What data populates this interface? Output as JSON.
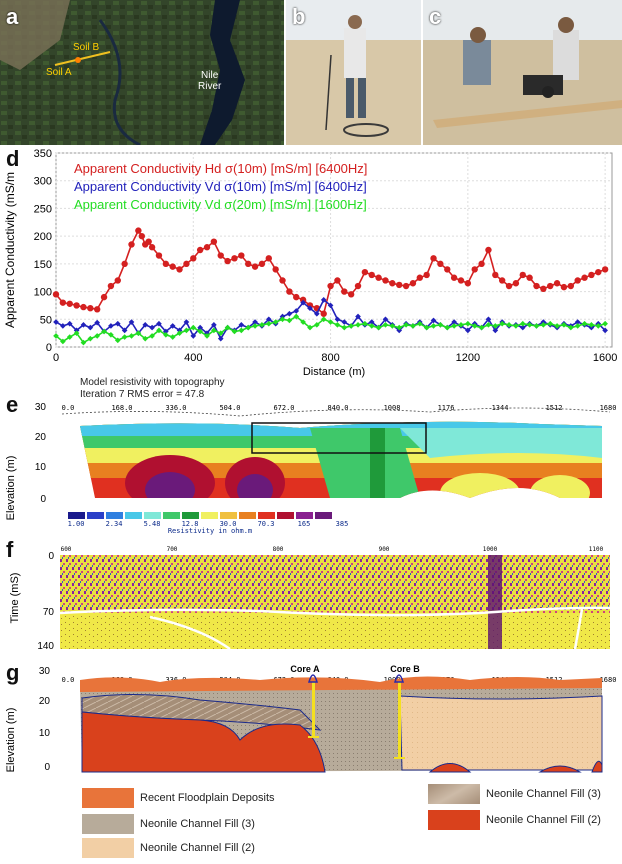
{
  "panel_labels": {
    "a": "a",
    "b": "b",
    "c": "c",
    "d": "d",
    "e": "e",
    "f": "f",
    "g": "g"
  },
  "panel_a": {
    "soil_b": "Soil B",
    "soil_a": "Soil A",
    "river_line1": "Nile",
    "river_line2": "River"
  },
  "chart_data": [
    {
      "type": "line",
      "panel": "d",
      "ylabel": "Apparent Conductivity (mS/m",
      "xlabel": "Distance (m)",
      "xlim": [
        0,
        1620
      ],
      "ylim": [
        0,
        350
      ],
      "x_ticks": [
        0,
        400,
        800,
        1200,
        1600
      ],
      "y_ticks": [
        0,
        50,
        100,
        150,
        200,
        250,
        300,
        350
      ],
      "legend": [
        {
          "label": "Apparent Conductivity Hd σ(10m) [mS/m] [6400Hz]",
          "color": "#d42020"
        },
        {
          "label": "Apparent Conductivity Vd σ(10m) [mS/m] [6400Hz]",
          "color": "#2222bb"
        },
        {
          "label": "Apparent Conductivity Vd σ(20m) [mS/m] [1600Hz]",
          "color": "#22dd22"
        }
      ],
      "series": [
        {
          "name": "Hd 10m 6400Hz",
          "color": "#d42020",
          "x": [
            0,
            20,
            40,
            60,
            80,
            100,
            120,
            140,
            160,
            180,
            200,
            220,
            240,
            250,
            260,
            270,
            280,
            300,
            320,
            340,
            360,
            380,
            400,
            420,
            440,
            460,
            480,
            500,
            520,
            540,
            560,
            580,
            600,
            620,
            640,
            660,
            680,
            700,
            720,
            740,
            760,
            780,
            800,
            820,
            840,
            860,
            880,
            900,
            920,
            940,
            960,
            980,
            1000,
            1020,
            1040,
            1060,
            1080,
            1100,
            1120,
            1140,
            1160,
            1180,
            1200,
            1220,
            1240,
            1260,
            1280,
            1300,
            1320,
            1340,
            1360,
            1380,
            1400,
            1420,
            1440,
            1460,
            1480,
            1500,
            1520,
            1540,
            1560,
            1580,
            1600
          ],
          "y": [
            95,
            80,
            78,
            75,
            72,
            70,
            68,
            90,
            110,
            120,
            150,
            185,
            210,
            200,
            185,
            190,
            180,
            165,
            150,
            145,
            140,
            150,
            160,
            175,
            180,
            190,
            165,
            155,
            160,
            165,
            150,
            145,
            150,
            160,
            140,
            120,
            100,
            90,
            85,
            75,
            70,
            60,
            110,
            120,
            100,
            95,
            110,
            135,
            130,
            125,
            120,
            115,
            112,
            110,
            115,
            125,
            130,
            160,
            150,
            140,
            125,
            120,
            115,
            140,
            150,
            175,
            130,
            120,
            110,
            115,
            130,
            125,
            110,
            105,
            110,
            115,
            108,
            110,
            120,
            125,
            130,
            135,
            140
          ]
        },
        {
          "name": "Vd 10m 6400Hz",
          "color": "#2222bb",
          "x": [
            0,
            20,
            40,
            60,
            80,
            100,
            120,
            140,
            160,
            180,
            200,
            220,
            240,
            260,
            280,
            300,
            320,
            340,
            360,
            380,
            400,
            420,
            440,
            460,
            480,
            500,
            520,
            540,
            560,
            580,
            600,
            620,
            640,
            660,
            680,
            700,
            720,
            740,
            760,
            780,
            800,
            820,
            840,
            860,
            880,
            900,
            920,
            940,
            960,
            980,
            1000,
            1020,
            1040,
            1060,
            1080,
            1100,
            1120,
            1140,
            1160,
            1180,
            1200,
            1220,
            1240,
            1260,
            1280,
            1300,
            1320,
            1340,
            1360,
            1380,
            1400,
            1420,
            1440,
            1460,
            1480,
            1500,
            1520,
            1540,
            1560,
            1580,
            1600
          ],
          "y": [
            45,
            38,
            42,
            30,
            40,
            35,
            44,
            28,
            38,
            42,
            30,
            45,
            25,
            40,
            35,
            42,
            28,
            38,
            30,
            45,
            20,
            35,
            25,
            40,
            15,
            35,
            30,
            40,
            35,
            45,
            38,
            50,
            42,
            55,
            60,
            65,
            80,
            70,
            60,
            85,
            75,
            50,
            45,
            38,
            55,
            40,
            45,
            35,
            50,
            40,
            30,
            42,
            38,
            45,
            35,
            48,
            40,
            35,
            45,
            38,
            30,
            42,
            35,
            50,
            30,
            45,
            38,
            40,
            35,
            42,
            38,
            45,
            40,
            35,
            42,
            38,
            45,
            40,
            35,
            42,
            30
          ]
        },
        {
          "name": "Vd 20m 1600Hz",
          "color": "#22dd22",
          "x": [
            0,
            20,
            40,
            60,
            80,
            100,
            120,
            140,
            160,
            180,
            200,
            220,
            240,
            260,
            280,
            300,
            320,
            340,
            360,
            380,
            400,
            420,
            440,
            460,
            480,
            500,
            520,
            540,
            560,
            580,
            600,
            620,
            640,
            660,
            680,
            700,
            720,
            740,
            760,
            780,
            800,
            820,
            840,
            860,
            880,
            900,
            920,
            940,
            960,
            980,
            1000,
            1020,
            1040,
            1060,
            1080,
            1100,
            1120,
            1140,
            1160,
            1180,
            1200,
            1220,
            1240,
            1260,
            1280,
            1300,
            1320,
            1340,
            1360,
            1380,
            1400,
            1420,
            1440,
            1460,
            1480,
            1500,
            1520,
            1540,
            1560,
            1580,
            1600
          ],
          "y": [
            20,
            10,
            18,
            25,
            8,
            15,
            20,
            28,
            22,
            12,
            18,
            20,
            25,
            15,
            20,
            30,
            22,
            18,
            25,
            30,
            35,
            28,
            20,
            30,
            25,
            35,
            28,
            30,
            35,
            38,
            40,
            42,
            45,
            50,
            48,
            55,
            45,
            35,
            40,
            50,
            45,
            40,
            35,
            38,
            40,
            42,
            38,
            35,
            40,
            38,
            35,
            40,
            38,
            42,
            35,
            38,
            40,
            35,
            38,
            40,
            42,
            38,
            35,
            40,
            38,
            42,
            40,
            38,
            42,
            40,
            38,
            40,
            42,
            38,
            40,
            35,
            38,
            42,
            40,
            38,
            42
          ]
        }
      ]
    }
  ],
  "panel_e": {
    "title_line1": "Model resistivity with topography",
    "title_line2": "Iteration 7 RMS error = 47.8",
    "ylabel": "Elevation (m)",
    "y_ticks": [
      "30",
      "20",
      "10",
      "0"
    ],
    "distance_labels": [
      "0.0",
      "168.0",
      "336.0",
      "504.0",
      "672.0",
      "840.0",
      "1008",
      "1176",
      "1344",
      "1512",
      "1680"
    ],
    "scale_labels": [
      "1.00",
      "2.34",
      "5.48",
      "12.8",
      "30.0",
      "70.3",
      "165",
      "385"
    ],
    "scale_colors": [
      "#1a1a8c",
      "#2a3fc8",
      "#2f7fe0",
      "#48c8e8",
      "#7fe8d8",
      "#3fc86a",
      "#1f9a3a",
      "#f0f060",
      "#f0c040",
      "#e88020",
      "#e03020",
      "#b01030",
      "#8a2090",
      "#6a1a7a"
    ],
    "scale_title": "Resistivity in ohm.m"
  },
  "panel_f": {
    "ylabel": "Time (mS)",
    "y_ticks": [
      "0",
      "70",
      "140"
    ],
    "x_ticks": [
      "600",
      "700",
      "800",
      "900",
      "1000",
      "1100"
    ]
  },
  "panel_g": {
    "ylabel": "Elevation (m)",
    "y_ticks": [
      "30",
      "20",
      "10",
      "0"
    ],
    "distance_labels": [
      "0.0",
      "168.0",
      "336.0",
      "504.0",
      "672.0",
      "840.0",
      "1008",
      "1176",
      "1344",
      "1512",
      "1680"
    ],
    "core_a": "Core A",
    "core_b": "Core B",
    "legend": [
      {
        "label": "Recent Floodplain Deposits",
        "color": "#e8743a"
      },
      {
        "label": "Neonile Channel Fill (3)",
        "color": "#b7ab9a"
      },
      {
        "label": "Neonile Channel Fill (2)",
        "color": "#f2cfa5"
      },
      {
        "label": "Neonile Channel Fill (3)",
        "color": "#a58e78"
      },
      {
        "label": "Neonile Channel Fill (2)",
        "color": "#d9411c"
      }
    ]
  }
}
